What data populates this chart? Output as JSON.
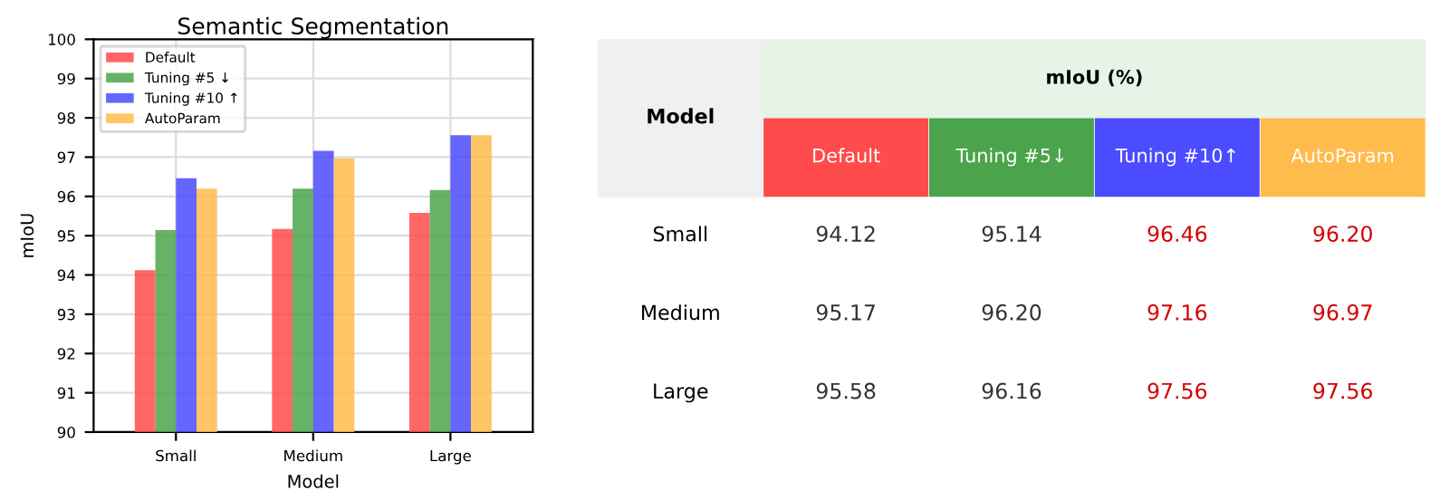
{
  "chart_data": [
    {
      "type": "bar",
      "title": "Semantic Segmentation",
      "xlabel": "Model",
      "ylabel": "mIoU",
      "categories": [
        "Small",
        "Medium",
        "Large"
      ],
      "series": [
        {
          "name": "Default",
          "color": "#ff4b4b",
          "values": [
            94.12,
            95.17,
            95.58
          ]
        },
        {
          "name": "Tuning #5 ↓",
          "color": "#4ba44b",
          "values": [
            95.14,
            96.2,
            96.16
          ]
        },
        {
          "name": "Tuning #10 ↑",
          "color": "#4b4bff",
          "values": [
            96.46,
            97.16,
            97.56
          ]
        },
        {
          "name": "AutoParam",
          "color": "#ffbb4b",
          "values": [
            96.2,
            96.97,
            97.56
          ]
        }
      ],
      "ylim": [
        90,
        100
      ],
      "yticks": [
        90,
        91,
        92,
        93,
        94,
        95,
        96,
        97,
        98,
        99,
        100
      ],
      "grid": true,
      "legend": "top left"
    },
    {
      "type": "heatmap",
      "ylabel": "Model",
      "title": "mIoU (%)",
      "categories": [
        "Default",
        "Tuning #5↓",
        "Tuning #10↑",
        "AutoParam"
      ],
      "y_categories": [
        "Small",
        "Medium",
        "Large"
      ],
      "cells": [
        [
          94.12,
          95.14,
          96.46,
          96.2
        ],
        [
          95.17,
          96.2,
          97.16,
          96.97
        ],
        [
          95.58,
          96.16,
          97.56,
          97.56
        ]
      ],
      "cell_labels": [
        [
          "94.12",
          "95.14",
          "96.46",
          "96.20"
        ],
        [
          "95.17",
          "96.20",
          "97.16",
          "96.97"
        ],
        [
          "95.58",
          "96.16",
          "97.56",
          "97.56"
        ]
      ]
    }
  ]
}
